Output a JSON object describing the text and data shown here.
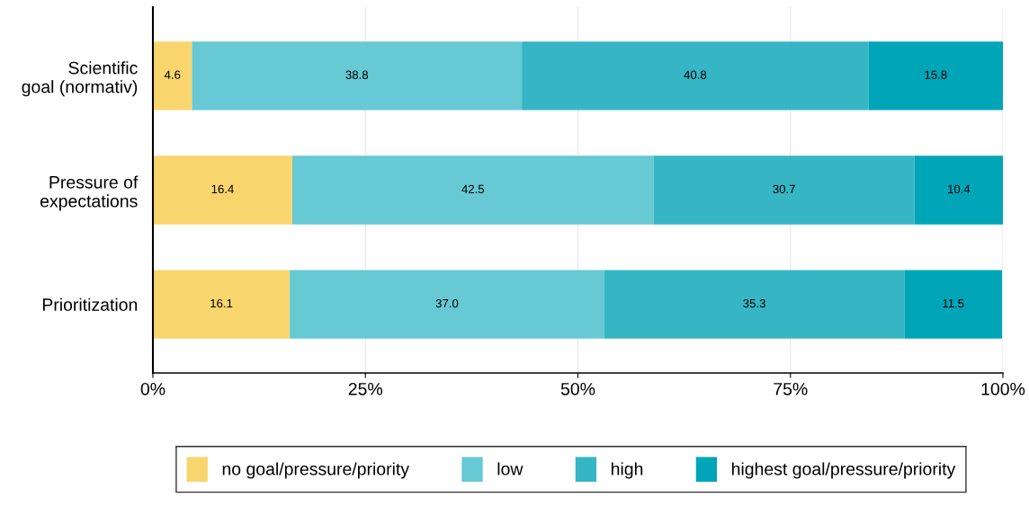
{
  "chart_data": {
    "type": "bar",
    "orientation": "horizontal",
    "stacked": true,
    "categories": [
      "Scientific\ngoal (normativ)",
      "Pressure of\nexpectations",
      "Prioritization"
    ],
    "series": [
      {
        "name": "no goal/pressure/priority",
        "color": "#f9d56e",
        "values": [
          4.6,
          16.4,
          16.1
        ]
      },
      {
        "name": "low",
        "color": "#66c9d4",
        "values": [
          38.8,
          42.5,
          37.0
        ],
        "value_labels": [
          "38.8",
          "42.5",
          "37.0"
        ]
      },
      {
        "name": "high",
        "color": "#36b6c5",
        "values": [
          40.8,
          30.7,
          35.3
        ]
      },
      {
        "name": "highest goal/pressure/priority",
        "color": "#00a5b8",
        "values": [
          15.8,
          10.4,
          11.5
        ]
      }
    ],
    "xlim": [
      0,
      100
    ],
    "xticks": [
      {
        "value": 0,
        "label": "0%"
      },
      {
        "value": 25,
        "label": "25%"
      },
      {
        "value": 50,
        "label": "50%"
      },
      {
        "value": 75,
        "label": "75%"
      },
      {
        "value": 100,
        "label": "100%"
      }
    ],
    "grid": "x",
    "legend": "bottom",
    "data_labels": true
  }
}
